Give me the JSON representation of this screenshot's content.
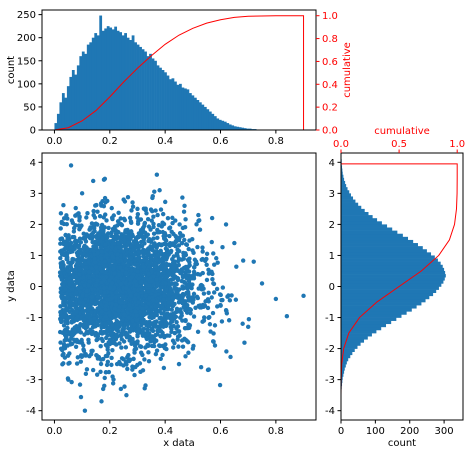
{
  "colors": {
    "data": "#1f77b4",
    "cumulative": "#ff0000",
    "axes": "#000000"
  },
  "chart_data": [
    {
      "type": "bar",
      "name": "top-histogram",
      "xlabel": "",
      "ylabel": "count",
      "y2label": "cumulative",
      "xlim": [
        -0.045,
        0.945
      ],
      "ylim": [
        0,
        260
      ],
      "y2lim": [
        0,
        1.05
      ],
      "xticks": [
        "0.0",
        "0.2",
        "0.4",
        "0.6",
        "0.8"
      ],
      "xtick_values": [
        0,
        0.2,
        0.4,
        0.6,
        0.8
      ],
      "yticks": [
        "0",
        "50",
        "100",
        "150",
        "200",
        "250"
      ],
      "ytick_values": [
        0,
        50,
        100,
        150,
        200,
        250
      ],
      "y2ticks": [
        "0.0",
        "0.2",
        "0.4",
        "0.6",
        "0.8",
        "1.0"
      ],
      "y2tick_values": [
        0,
        0.2,
        0.4,
        0.6,
        0.8,
        1.0
      ],
      "bin_start": 0.0,
      "bin_width": 0.009,
      "values": [
        15,
        35,
        60,
        80,
        70,
        95,
        115,
        130,
        120,
        140,
        160,
        170,
        165,
        185,
        190,
        200,
        210,
        205,
        248,
        215,
        220,
        225,
        222,
        218,
        224,
        215,
        212,
        205,
        210,
        200,
        195,
        205,
        190,
        185,
        180,
        175,
        170,
        160,
        165,
        155,
        150,
        140,
        135,
        130,
        125,
        118,
        110,
        112,
        105,
        98,
        100,
        92,
        90,
        88,
        80,
        75,
        70,
        65,
        60,
        55,
        50,
        45,
        40,
        35,
        30,
        25,
        22,
        20,
        18,
        15,
        12,
        10,
        8,
        7,
        6,
        5,
        4,
        3,
        3,
        2,
        2,
        1,
        1,
        1,
        1,
        0,
        1,
        0,
        0,
        1
      ],
      "cumulative": {
        "x": [
          0.0,
          0.05,
          0.1,
          0.15,
          0.2,
          0.25,
          0.3,
          0.35,
          0.4,
          0.45,
          0.5,
          0.55,
          0.6,
          0.65,
          0.7,
          0.8,
          0.9
        ],
        "y": [
          0.0,
          0.02,
          0.08,
          0.17,
          0.29,
          0.42,
          0.54,
          0.65,
          0.75,
          0.83,
          0.89,
          0.935,
          0.965,
          0.985,
          0.995,
          1.0,
          1.0
        ],
        "drop_to_zero_at": 0.9
      }
    },
    {
      "type": "scatter",
      "name": "main-scatter",
      "xlabel": "x data",
      "ylabel": "y data",
      "xlim": [
        -0.045,
        0.945
      ],
      "ylim": [
        -4.3,
        4.3
      ],
      "xticks": [
        "0.0",
        "0.2",
        "0.4",
        "0.6",
        "0.8"
      ],
      "xtick_values": [
        0,
        0.2,
        0.4,
        0.6,
        0.8
      ],
      "yticks": [
        "-4",
        "-3",
        "-2",
        "-1",
        "0",
        "1",
        "2",
        "3",
        "4"
      ],
      "ytick_values": [
        -4,
        -3,
        -2,
        -1,
        0,
        1,
        2,
        3,
        4
      ],
      "points": {
        "x": [
          0.05,
          0.08,
          0.12,
          0.15,
          0.2,
          0.23,
          0.27,
          0.3,
          0.33,
          0.36,
          0.4,
          0.43,
          0.47,
          0.5,
          0.55,
          0.6,
          0.65,
          0.7,
          0.75,
          0.8,
          0.1,
          0.18,
          0.25,
          0.32,
          0.38,
          0.45,
          0.52,
          0.58,
          0.13,
          0.22,
          0.28,
          0.35,
          0.42,
          0.48,
          0.62,
          0.68,
          0.72,
          0.9,
          0.05,
          0.14,
          0.26,
          0.3,
          0.21,
          0.17,
          0.11,
          0.06,
          0.24,
          0.37,
          0.41,
          0.53
        ],
        "y": [
          0.5,
          -0.8,
          1.2,
          -1.5,
          0.2,
          2.1,
          -2.4,
          0.9,
          -0.3,
          1.7,
          -1.1,
          0.4,
          2.6,
          -2.0,
          0.7,
          -0.6,
          1.4,
          -1.3,
          0.1,
          -0.4,
          3.0,
          -3.2,
          2.8,
          -2.7,
          3.1,
          -2.5,
          2.3,
          -1.9,
          1.9,
          -0.9,
          0.3,
          -1.7,
          1.1,
          0.6,
          2.0,
          -1.2,
          0.8,
          -0.3,
          -3.0,
          3.4,
          -3.5,
          2.5,
          -2.9,
          -3.7,
          -4.0,
          3.9,
          -3.3,
          3.6,
          2.2,
          -2.6
        ]
      }
    },
    {
      "type": "bar",
      "orientation": "horizontal",
      "name": "right-histogram",
      "xlabel": "count",
      "x2label": "cumulative",
      "xlim": [
        0,
        355
      ],
      "x2lim": [
        0,
        1.05
      ],
      "ylim": [
        -4.3,
        4.3
      ],
      "xticks": [
        "0",
        "100",
        "200",
        "300"
      ],
      "xtick_values": [
        0,
        100,
        200,
        300
      ],
      "x2ticks": [
        "0.0",
        "0.5",
        "1.0"
      ],
      "x2tick_values": [
        0,
        0.5,
        1.0
      ],
      "yticks": [
        "-4",
        "-3",
        "-2",
        "-1",
        "0",
        "1",
        "2",
        "3",
        "4"
      ],
      "ytick_values": [
        -4,
        -3,
        -2,
        -1,
        0,
        1,
        2,
        3,
        4
      ],
      "bin_start": -3.5,
      "bin_width": 0.1,
      "values": [
        1,
        1,
        2,
        3,
        4,
        5,
        7,
        9,
        11,
        14,
        17,
        21,
        27,
        33,
        40,
        48,
        57,
        67,
        78,
        90,
        103,
        117,
        131,
        146,
        161,
        176,
        191,
        206,
        220,
        234,
        246,
        257,
        268,
        277,
        285,
        292,
        298,
        302,
        305,
        303,
        300,
        296,
        290,
        282,
        273,
        262,
        250,
        238,
        224,
        210,
        195,
        180,
        164,
        149,
        134,
        119,
        105,
        92,
        80,
        69,
        59,
        50,
        42,
        35,
        29,
        24,
        19,
        15,
        12,
        9,
        7,
        5,
        4,
        3,
        2,
        2,
        1,
        1
      ],
      "cumulative": {
        "y": [
          -3.5,
          -3.0,
          -2.5,
          -2.0,
          -1.5,
          -1.0,
          -0.5,
          0.0,
          0.5,
          1.0,
          1.5,
          2.0,
          2.5,
          3.0,
          3.5,
          3.95
        ],
        "x": [
          0.0,
          0.0015,
          0.006,
          0.023,
          0.067,
          0.159,
          0.309,
          0.5,
          0.691,
          0.841,
          0.933,
          0.977,
          0.994,
          0.999,
          1.0,
          1.0
        ],
        "drop_to_zero_at": 3.95
      }
    }
  ]
}
